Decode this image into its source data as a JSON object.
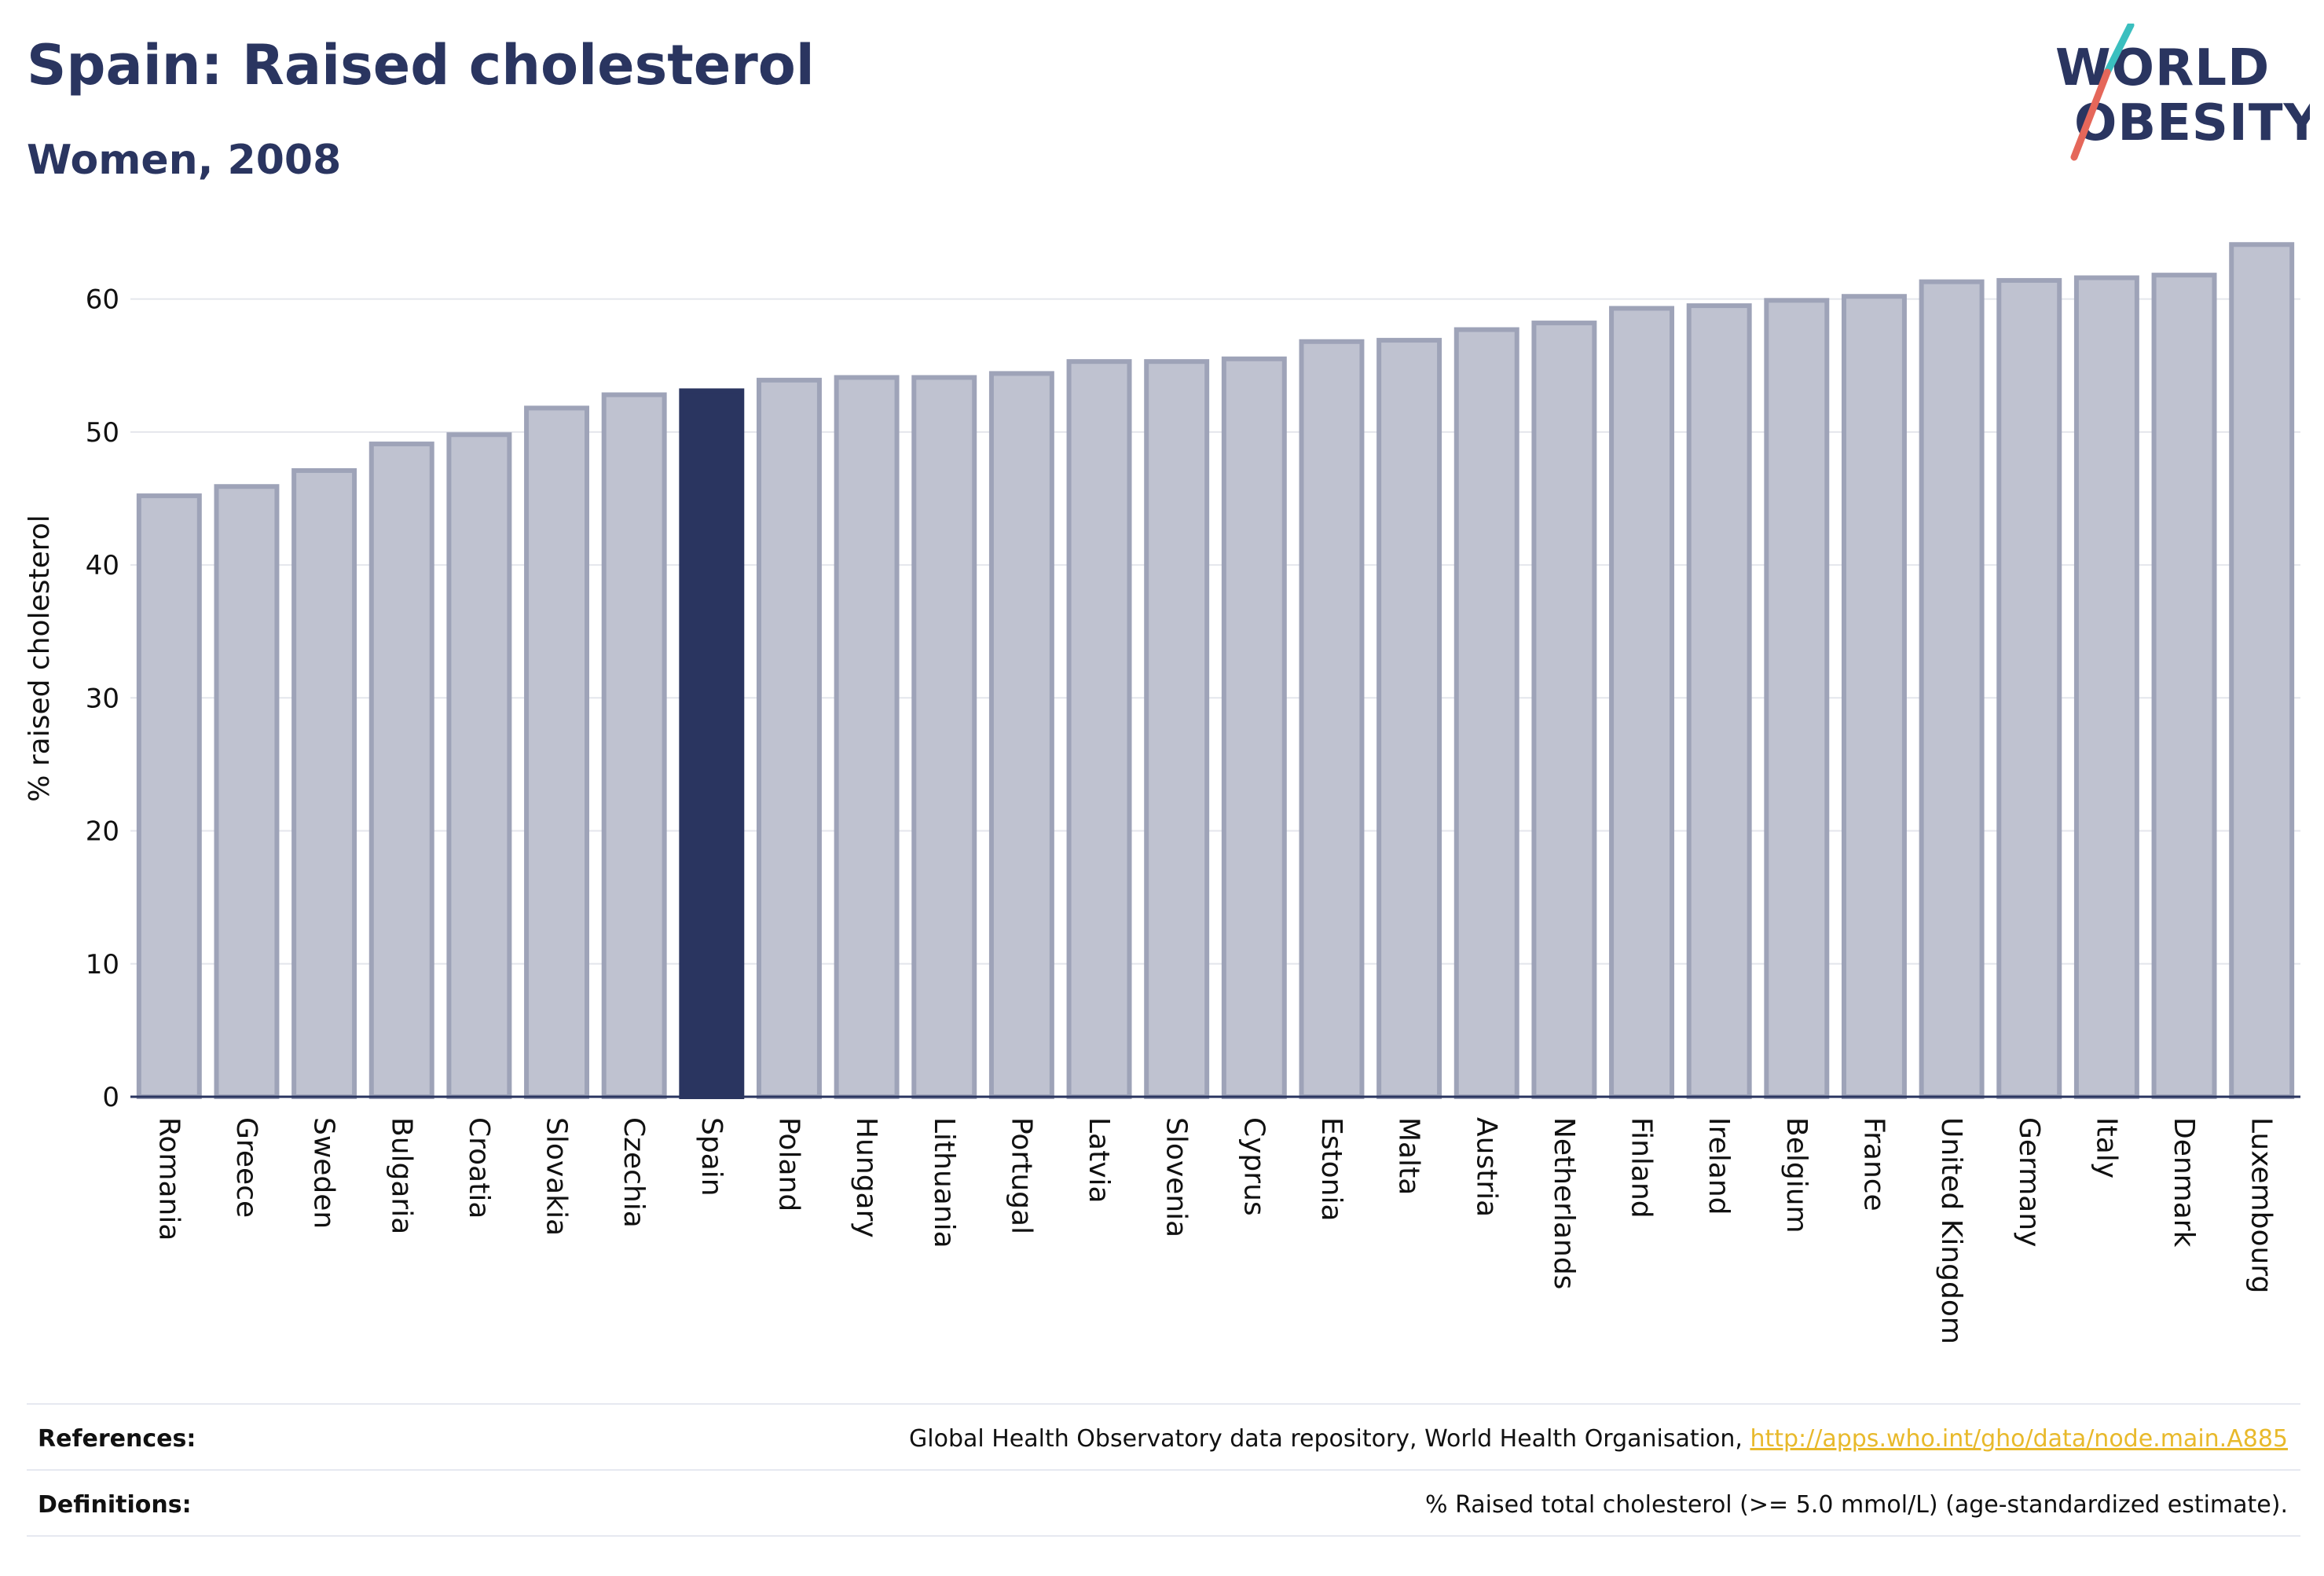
{
  "header": {
    "title": "Spain: Raised cholesterol",
    "subtitle": "Women, 2008"
  },
  "logo": {
    "line1": "WORLD",
    "line2": "OBESITY",
    "colors": {
      "text": "#2a3560",
      "slash_teal": "#3bbfbf",
      "slash_coral": "#e5675a"
    }
  },
  "chart_data": {
    "type": "bar",
    "ylabel": "% raised cholesterol",
    "ylim": [
      0,
      65
    ],
    "yticks": [
      0,
      10,
      20,
      30,
      40,
      50,
      60
    ],
    "grid": true,
    "highlight": "Spain",
    "colors": {
      "bar": "#bfc2d0",
      "bar_border": "#9ea3b8",
      "highlight": "#2a3560"
    },
    "categories": [
      "Romania",
      "Greece",
      "Sweden",
      "Bulgaria",
      "Croatia",
      "Slovakia",
      "Czechia",
      "Spain",
      "Poland",
      "Hungary",
      "Lithuania",
      "Portugal",
      "Latvia",
      "Slovenia",
      "Cyprus",
      "Estonia",
      "Malta",
      "Austria",
      "Netherlands",
      "Finland",
      "Ireland",
      "Belgium",
      "France",
      "United Kingdom",
      "Germany",
      "Italy",
      "Denmark",
      "Luxembourg"
    ],
    "values": [
      45.2,
      45.9,
      47.1,
      49.1,
      49.8,
      51.8,
      52.8,
      53.1,
      53.9,
      54.1,
      54.1,
      54.4,
      55.3,
      55.3,
      55.5,
      56.8,
      56.9,
      57.7,
      58.2,
      59.3,
      59.5,
      59.9,
      60.2,
      61.3,
      61.4,
      61.6,
      61.8,
      64.1
    ]
  },
  "footer": {
    "references_label": "References:",
    "references_text": "Global Health Observatory data repository, World Health Organisation, ",
    "references_link": "http://apps.who.int/gho/data/node.main.A885",
    "definitions_label": "Definitions:",
    "definitions_text": "% Raised total cholesterol (>= 5.0 mmol/L) (age-standardized estimate)."
  }
}
